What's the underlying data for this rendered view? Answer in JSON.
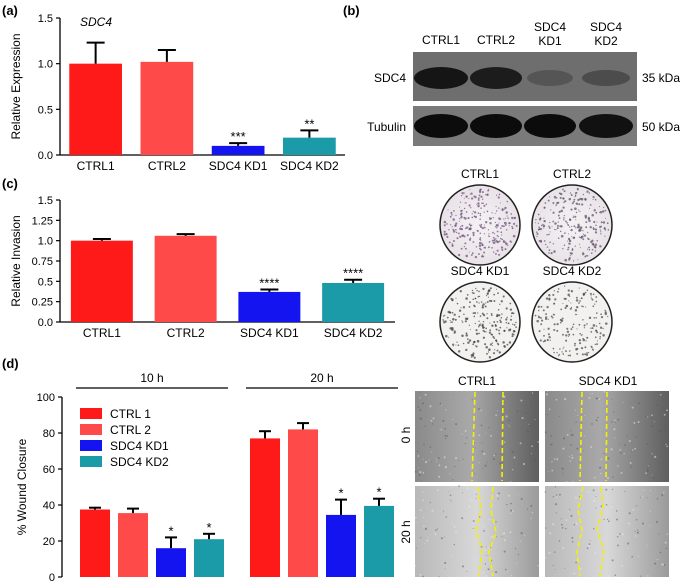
{
  "colors": {
    "ctrl1": "#ff1a1a",
    "ctrl2": "#ff4a4a",
    "kd1": "#1414f0",
    "kd2": "#1b9aa8"
  },
  "panel_labels": {
    "a": "(a)",
    "b": "(b)",
    "c": "(c)",
    "d": "(d)"
  },
  "blot": {
    "lanes": [
      "CTRL1",
      "CTRL2",
      "SDC4\nKD1",
      "SDC4\nKD2"
    ],
    "rows": [
      {
        "label": "SDC4",
        "size": "35 kDa"
      },
      {
        "label": "Tubulin",
        "size": "50 kDa"
      }
    ]
  },
  "invasion_wells": [
    "CTRL1",
    "CTRL2",
    "SDC4 KD1",
    "SDC4 KD2"
  ],
  "wound_images": {
    "columns": [
      "CTRL1",
      "SDC4 KD1"
    ],
    "rows": [
      "0 h",
      "20 h"
    ]
  },
  "chart_data": [
    {
      "type": "bar",
      "panel": "a",
      "title": "SDC4",
      "ylabel": "Relative Expression",
      "categories": [
        "CTRL1",
        "CTRL2",
        "SDC4 KD1",
        "SDC4 KD2"
      ],
      "values": [
        1.0,
        1.02,
        0.1,
        0.19
      ],
      "errors": [
        0.23,
        0.13,
        0.03,
        0.08
      ],
      "significance": [
        "",
        "",
        "***",
        "**"
      ],
      "ylim": [
        0,
        1.5
      ],
      "yticks": [
        "0.0",
        "0.5",
        "1.0",
        "1.5"
      ]
    },
    {
      "type": "bar",
      "panel": "c",
      "ylabel": "Relative Invasion",
      "categories": [
        "CTRL1",
        "CTRL2",
        "SDC4 KD1",
        "SDC4 KD2"
      ],
      "values": [
        1.0,
        1.06,
        0.37,
        0.48
      ],
      "errors": [
        0.02,
        0.02,
        0.03,
        0.04
      ],
      "significance": [
        "",
        "",
        "****",
        "****"
      ],
      "ylim": [
        0,
        1.5
      ],
      "yticks": [
        "0.0",
        "0.25",
        "0.5",
        "0.75",
        "1.0",
        "1.25",
        "1.5"
      ]
    },
    {
      "type": "bar",
      "panel": "d",
      "ylabel": "% Wound Closure",
      "groups": [
        "10 h",
        "20 h"
      ],
      "series": [
        {
          "name": "CTRL 1",
          "values": [
            37.5,
            77
          ],
          "errors": [
            1,
            4
          ]
        },
        {
          "name": "CTRL 2",
          "values": [
            35.5,
            82
          ],
          "errors": [
            2.5,
            3.5
          ]
        },
        {
          "name": "SDC4 KD1",
          "values": [
            16,
            34.5
          ],
          "errors": [
            6,
            8.5
          ]
        },
        {
          "name": "SDC4 KD2",
          "values": [
            21,
            39.5
          ],
          "errors": [
            3,
            4
          ]
        }
      ],
      "significance": [
        [
          "",
          "",
          "*",
          "*"
        ],
        [
          "",
          "",
          "*",
          "*"
        ]
      ],
      "ylim": [
        0,
        100
      ],
      "yticks": [
        "0",
        "20",
        "40",
        "60",
        "80",
        "100"
      ],
      "legend": "top-left"
    }
  ]
}
